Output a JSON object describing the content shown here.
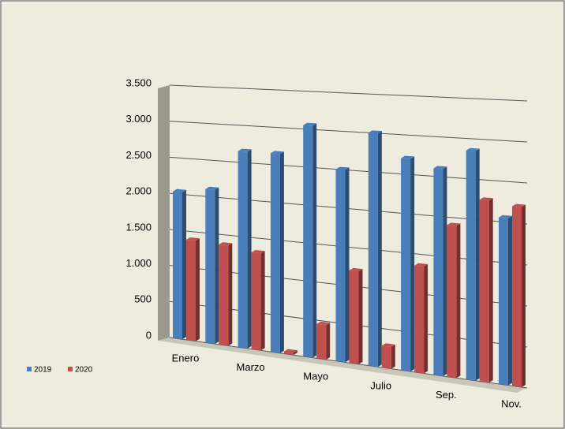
{
  "chart_data": {
    "type": "bar",
    "categories": [
      "Enero",
      null,
      "Marzo",
      null,
      "Mayo",
      null,
      "Julio",
      null,
      "Sep.",
      null,
      "Nov."
    ],
    "series": [
      {
        "name": "2019",
        "color": "#4a7ebb",
        "values": [
          2030,
          2100,
          2650,
          2650,
          3050,
          2500,
          3000,
          2700,
          2600,
          2850,
          2050
        ]
      },
      {
        "name": "2020",
        "color": "#c0504d",
        "values": [
          1380,
          1360,
          1300,
          30,
          450,
          1200,
          280,
          1350,
          1900,
          2250,
          2200
        ]
      }
    ],
    "ylim": [
      0,
      3500
    ],
    "yticks": [
      0,
      500,
      {
        "value": 1000,
        "label": "1.000"
      },
      {
        "value": 1500,
        "label": "1.500"
      },
      {
        "value": 2000,
        "label": "2.000"
      },
      {
        "value": 2500,
        "label": "2.500"
      },
      {
        "value": 3000,
        "label": "3.000"
      },
      {
        "value": 3500,
        "label": "3.500"
      }
    ],
    "grid": true,
    "legend": "bottom-left"
  }
}
